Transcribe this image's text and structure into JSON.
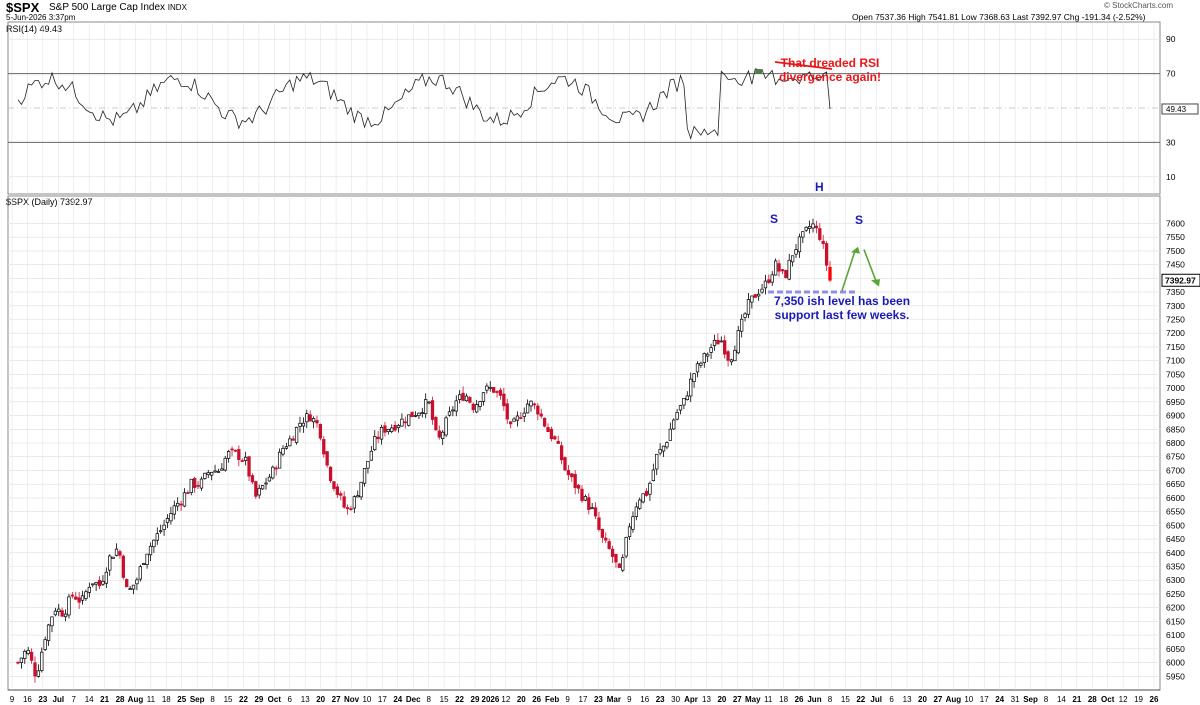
{
  "header": {
    "symbol": "$SPX",
    "name": "S&P 500 Large Cap Index",
    "exchange": "INDX",
    "datetime": "5-Jun-2026 3:37pm",
    "quote": "Open 7537.36  High 7541.81  Low 7368.63  Last 7392.97  Chg -191.34 (-2.52%)",
    "brand": "© StockCharts.com"
  },
  "rsi": {
    "label": "RSI(14) 49.43",
    "last": "49.43",
    "levels": [
      "90",
      "70",
      "50",
      "30",
      "10"
    ],
    "fill_color": "#4a7a4a"
  },
  "chart_data": {
    "type": "candlestick",
    "title": "$SPX (Daily) 7392.97",
    "last_value_tag": "7392.97",
    "ylim": [
      5900,
      7700
    ],
    "yticks": [
      "7600",
      "7550",
      "7500",
      "7450",
      "7400",
      "7350",
      "7300",
      "7250",
      "7200",
      "7150",
      "7100",
      "7050",
      "7000",
      "6950",
      "6900",
      "6850",
      "6800",
      "6750",
      "6700",
      "6650",
      "6600",
      "6550",
      "6500",
      "6450",
      "6400",
      "6350",
      "6300",
      "6250",
      "6200",
      "6150",
      "6100",
      "6050",
      "6000",
      "5950"
    ],
    "xticks": [
      "9",
      "16",
      "23",
      "Jul",
      "7",
      "14",
      "21",
      "28",
      "Aug",
      "11",
      "18",
      "25",
      "Sep",
      "8",
      "15",
      "22",
      "29",
      "Oct",
      "6",
      "13",
      "20",
      "27",
      "Nov",
      "10",
      "17",
      "24",
      "Dec",
      "8",
      "15",
      "22",
      "29",
      "2026",
      "12",
      "20",
      "26",
      "Feb",
      "9",
      "17",
      "23",
      "Mar",
      "9",
      "16",
      "23",
      "30",
      "Apr",
      "13",
      "20",
      "27",
      "May",
      "11",
      "18",
      "26",
      "Jun",
      "8",
      "15",
      "22",
      "Jul",
      "6",
      "13",
      "20",
      "27",
      "Aug",
      "10",
      "17",
      "24",
      "31",
      "Sep",
      "8",
      "14",
      "21",
      "28",
      "Oct",
      "12",
      "19",
      "26"
    ],
    "close_path": [
      [
        6000,
        6050
      ],
      [
        5950,
        6100
      ],
      [
        6200,
        6180
      ],
      [
        6250,
        6220
      ],
      [
        6300,
        6280
      ],
      [
        6380,
        6420
      ],
      [
        6250,
        6300
      ],
      [
        6400,
        6450
      ],
      [
        6500,
        6560
      ],
      [
        6600,
        6650
      ],
      [
        6650,
        6700
      ],
      [
        6700,
        6760
      ],
      [
        6760,
        6730
      ],
      [
        6600,
        6650
      ],
      [
        6700,
        6780
      ],
      [
        6820,
        6880
      ],
      [
        6900,
        6860
      ],
      [
        6700,
        6620
      ],
      [
        6550,
        6600
      ],
      [
        6700,
        6800
      ],
      [
        6850,
        6860
      ],
      [
        6880,
        6900
      ],
      [
        6920,
        6950
      ],
      [
        6800,
        6880
      ],
      [
        6950,
        6980
      ],
      [
        6930,
        6990
      ],
      [
        7000,
        6960
      ],
      [
        6850,
        6900
      ],
      [
        6950,
        6920
      ],
      [
        6850,
        6800
      ],
      [
        6700,
        6650
      ],
      [
        6600,
        6550
      ],
      [
        6450,
        6400
      ],
      [
        6320,
        6500
      ],
      [
        6600,
        6620
      ],
      [
        6750,
        6800
      ],
      [
        6900,
        6950
      ],
      [
        7050,
        7100
      ],
      [
        7150,
        7180
      ],
      [
        7100,
        7200
      ],
      [
        7300,
        7350
      ],
      [
        7380,
        7450
      ],
      [
        7400,
        7500
      ],
      [
        7550,
        7600
      ],
      [
        7550,
        7393
      ]
    ],
    "colors": {
      "up": "#000000",
      "down": "#c8102e",
      "last": "#ff0000",
      "grid": "#dddddd"
    }
  },
  "annotations": {
    "rsi_note_line1": "That dreaded RSI",
    "rsi_note_line2": "divergence again!",
    "support_line1": "7,350 ish level has been",
    "support_line2": "support last few weeks.",
    "left_shoulder": "S",
    "head": "H",
    "right_shoulder": "S",
    "red_color": "#e8161b",
    "blue_color": "#1a1ab3",
    "green_color": "#5aa53a",
    "support_color": "#8f8fe6"
  }
}
